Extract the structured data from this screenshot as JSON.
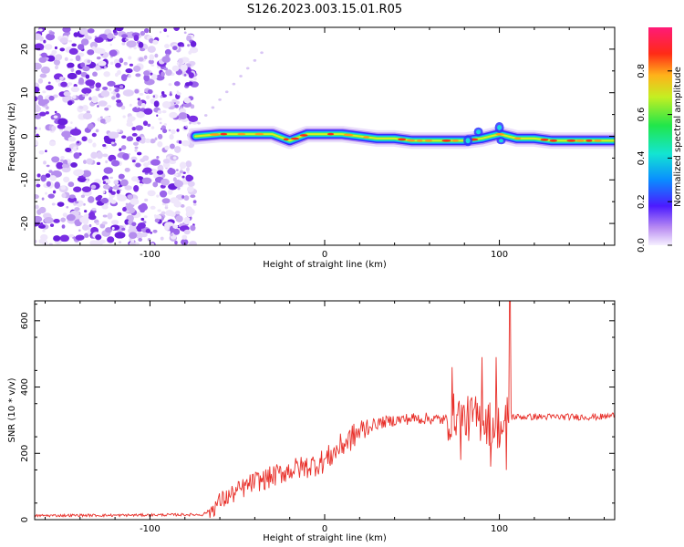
{
  "title": "S126.2023.003.15.01.R05",
  "colors": {
    "snr_line": "#e8302a",
    "scatter_purple": "#7a22e6",
    "axis": "#000000"
  },
  "chart_data": [
    {
      "type": "heatmap",
      "xlabel": "Height of straight line (km)",
      "ylabel": "Frequency (Hz)",
      "xlim": [
        -166,
        166
      ],
      "ylim": [
        -25,
        25
      ],
      "xticks": [
        -100,
        0,
        100
      ],
      "yticks": [
        -20,
        -10,
        0,
        10,
        20
      ],
      "colorbar": {
        "label": "Normalized spectral amplitude",
        "range": [
          0,
          1
        ],
        "ticks": [
          0.0,
          0.2,
          0.4,
          0.6,
          0.8
        ],
        "colormap": "rainbow (violet → red → magenta)"
      },
      "noise_region": {
        "x": [
          -166,
          -74
        ],
        "y": [
          -25,
          25
        ]
      },
      "carrier_trace": {
        "x": [
          -74,
          -60,
          -50,
          -40,
          -30,
          -20,
          -10,
          0,
          10,
          20,
          30,
          40,
          50,
          60,
          70,
          80,
          90,
          100,
          110,
          120,
          130,
          140,
          150,
          166
        ],
        "y": [
          0,
          0.5,
          0.5,
          0.5,
          0.5,
          -1,
          0.5,
          0.5,
          0.5,
          0,
          -0.5,
          -0.5,
          -1,
          -1,
          -1,
          -1,
          -0.5,
          0.5,
          -0.5,
          -0.5,
          -1,
          -1,
          -1,
          -1
        ]
      }
    },
    {
      "type": "line",
      "xlabel": "Height of straight line (km)",
      "ylabel": "SNR (10 * v/v)",
      "xlim": [
        -166,
        166
      ],
      "ylim": [
        0,
        660
      ],
      "xticks": [
        -100,
        0,
        100
      ],
      "yticks": [
        0,
        200,
        400,
        600
      ],
      "series": [
        {
          "x": [
            -166,
            -140,
            -120,
            -100,
            -80,
            -70,
            -65,
            -60,
            -55,
            -50,
            -45,
            -40,
            -35,
            -30,
            -25,
            -20,
            -15,
            -10,
            -5,
            0,
            5,
            10,
            15,
            20,
            25,
            30,
            40,
            50,
            60,
            70,
            75,
            80,
            85,
            90,
            95,
            100,
            103,
            105,
            107,
            110,
            120,
            130,
            140,
            150,
            160,
            166
          ],
          "y": [
            12,
            13,
            13,
            14,
            15,
            15,
            30,
            55,
            70,
            85,
            100,
            115,
            120,
            130,
            140,
            150,
            155,
            160,
            168,
            178,
            200,
            225,
            245,
            265,
            280,
            290,
            300,
            305,
            305,
            300,
            320,
            300,
            310,
            300,
            290,
            280,
            270,
            330,
            310,
            310,
            310,
            310,
            310,
            310,
            310,
            315
          ]
        }
      ]
    }
  ]
}
